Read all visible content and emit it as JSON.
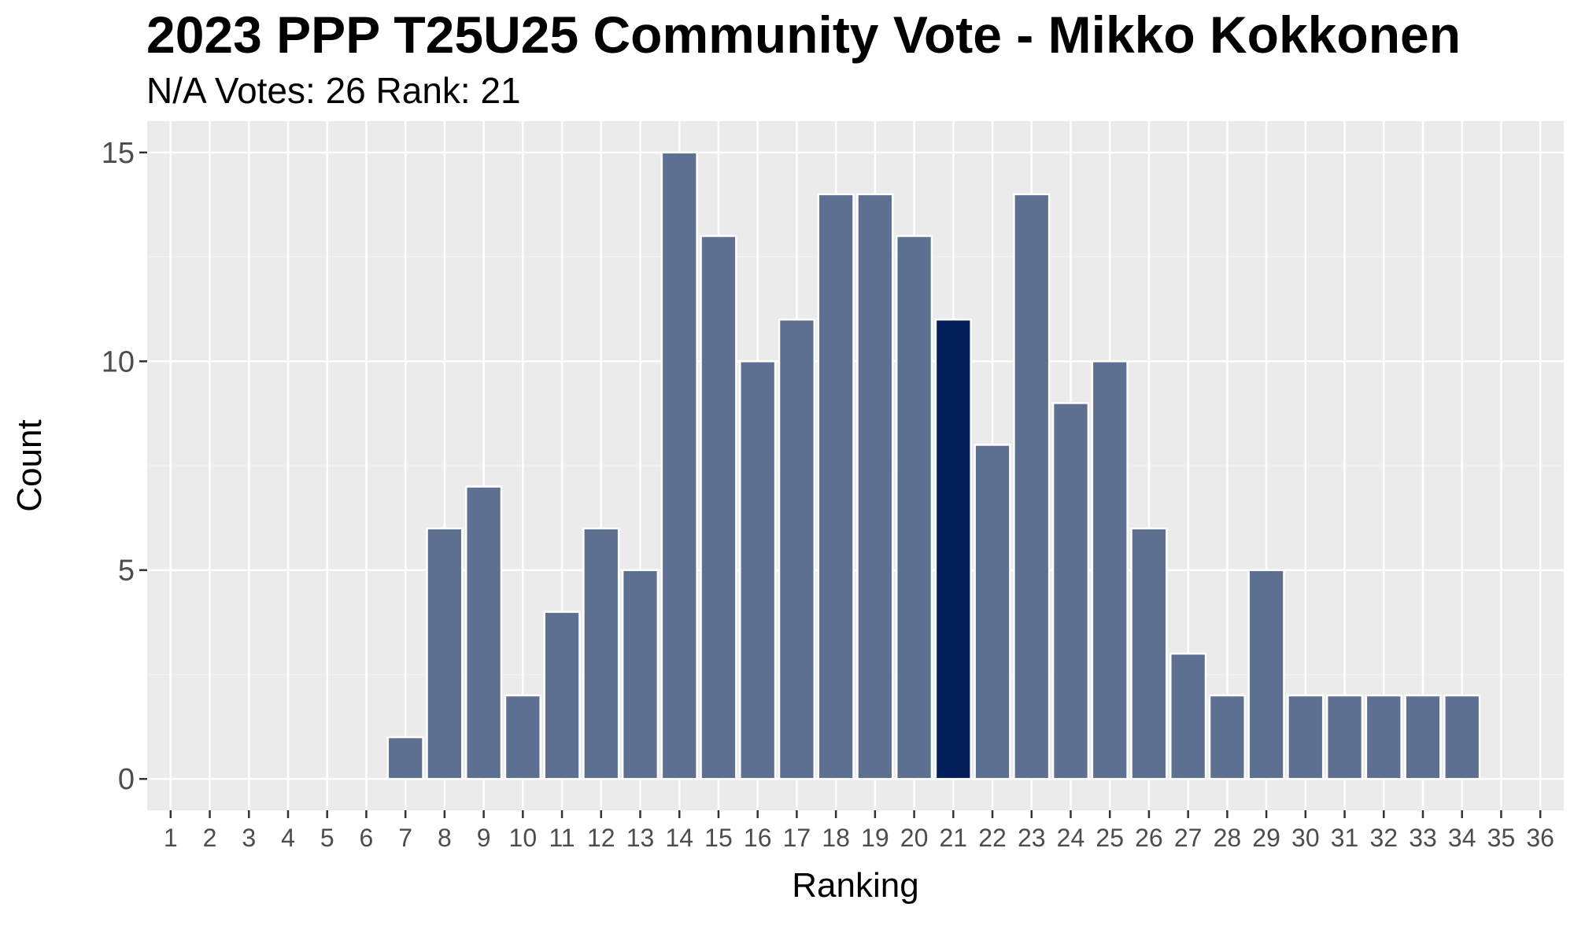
{
  "chart_data": {
    "type": "bar",
    "title": "2023 PPP T25U25 Community Vote - Mikko Kokkonen",
    "subtitle": "N/A Votes: 26  Rank: 21",
    "xlabel": "Ranking",
    "ylabel": "Count",
    "categories": [
      "1",
      "2",
      "3",
      "4",
      "5",
      "6",
      "7",
      "8",
      "9",
      "10",
      "11",
      "12",
      "13",
      "14",
      "15",
      "16",
      "17",
      "18",
      "19",
      "20",
      "21",
      "22",
      "23",
      "24",
      "25",
      "26",
      "27",
      "28",
      "29",
      "30",
      "31",
      "32",
      "33",
      "34",
      "35",
      "36"
    ],
    "values": [
      0,
      0,
      0,
      0,
      0,
      0,
      1,
      6,
      7,
      2,
      4,
      6,
      5,
      15,
      13,
      10,
      11,
      14,
      14,
      13,
      11,
      8,
      14,
      9,
      10,
      6,
      3,
      2,
      5,
      2,
      2,
      2,
      2,
      2,
      0,
      0
    ],
    "highlight_category": "21",
    "ylim": [
      0,
      15.75
    ],
    "y_ticks": [
      0,
      5,
      10,
      15
    ],
    "grid": true,
    "colors": {
      "bar": "#5e7091",
      "highlight": "#021f59",
      "bar_outline": "#ffffff",
      "panel": "#ebebeb",
      "grid_major": "#ffffff",
      "grid_minor": "#f2f2f2"
    }
  }
}
